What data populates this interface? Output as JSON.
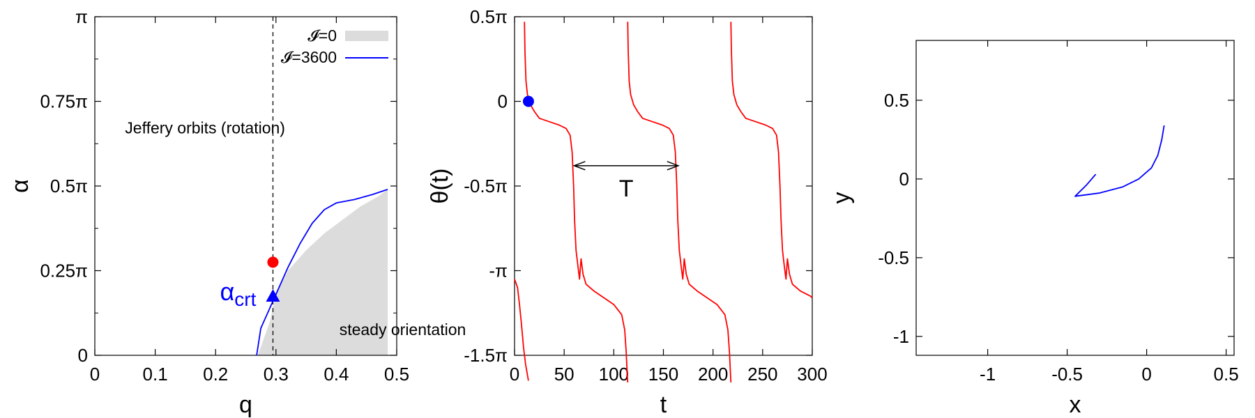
{
  "chart_data": [
    {
      "type": "line",
      "xlabel": "q",
      "ylabel": "α",
      "xlim": [
        0,
        0.5
      ],
      "ylim": [
        0,
        1
      ],
      "xticks": [
        0,
        0.1,
        0.2,
        0.3,
        0.4,
        0.5
      ],
      "xtick_labels": [
        "0",
        "0.1",
        "0.2",
        "0.3",
        "0.4",
        "0.5"
      ],
      "yticks": [
        0,
        0.25,
        0.5,
        0.75,
        1
      ],
      "ytick_labels": [
        "0",
        "0.25π",
        "0.5π",
        "0.75π",
        "π"
      ],
      "legend": {
        "placement": "top-right",
        "entries": [
          {
            "label": "𝓘=0",
            "style": "filled-area",
            "color": "#dcdcdc"
          },
          {
            "label": "𝓘=3600",
            "style": "line",
            "color": "#0000ff"
          }
        ]
      },
      "series": [
        {
          "name": "𝓘=0",
          "kind": "area",
          "color": "#dcdcdc",
          "x": [
            0.27,
            0.29,
            0.3,
            0.32,
            0.35,
            0.38,
            0.41,
            0.44,
            0.47,
            0.485
          ],
          "y": [
            0.0,
            0.1,
            0.18,
            0.25,
            0.31,
            0.36,
            0.4,
            0.44,
            0.47,
            0.49
          ]
        },
        {
          "name": "𝓘=3600",
          "kind": "line",
          "color": "#0000ff",
          "x": [
            0.268,
            0.275,
            0.29,
            0.3,
            0.32,
            0.34,
            0.36,
            0.38,
            0.4,
            0.43,
            0.46,
            0.485
          ],
          "y": [
            0.0,
            0.08,
            0.14,
            0.18,
            0.26,
            0.33,
            0.39,
            0.43,
            0.45,
            0.46,
            0.475,
            0.49
          ]
        }
      ],
      "markers": [
        {
          "shape": "circle",
          "color": "#ff0000",
          "x": 0.295,
          "y": 0.275
        },
        {
          "shape": "triangle",
          "color": "#0000ff",
          "x": 0.295,
          "y": 0.175
        }
      ],
      "vline_x": 0.295,
      "annotations": [
        {
          "text": "Jeffery orbits (rotation)",
          "x": 0.05,
          "y": 0.655
        },
        {
          "text": "steady orientation",
          "x": 0.405,
          "y": 0.06
        }
      ],
      "marker_label": {
        "text": "α",
        "sub": "crt"
      }
    },
    {
      "type": "line",
      "xlabel": "t",
      "ylabel": "θ(t)",
      "xlim": [
        0,
        300
      ],
      "ylim": [
        -1.5,
        0.5
      ],
      "xticks": [
        0,
        50,
        100,
        150,
        200,
        250,
        300
      ],
      "xtick_labels": [
        "0",
        "50",
        "100",
        "150",
        "200",
        "250",
        "300"
      ],
      "yticks": [
        0.5,
        0,
        -0.5,
        -1,
        -1.5
      ],
      "ytick_labels": [
        "0.5π",
        "0",
        "-0.5π",
        "-π",
        "-1.5π"
      ],
      "series": [
        {
          "color": "#ff0000",
          "x": [
            0,
            3,
            5,
            7,
            9,
            11,
            14
          ],
          "y": [
            -1.05,
            -1.1,
            -1.2,
            -1.32,
            -1.45,
            -1.55,
            -1.65
          ]
        },
        {
          "color": "#ff0000",
          "x": [
            10,
            10.5,
            11.5,
            13,
            16,
            20,
            25,
            35,
            45,
            52,
            56,
            58,
            59.5,
            60.5,
            62,
            64,
            65.5,
            67,
            69,
            72,
            80,
            90,
            100,
            108,
            111,
            112.5,
            113.5,
            114
          ],
          "y": [
            0.47,
            0.3,
            0.12,
            0.04,
            -0.02,
            -0.06,
            -0.1,
            -0.12,
            -0.14,
            -0.16,
            -0.2,
            -0.3,
            -0.5,
            -0.7,
            -0.88,
            -0.98,
            -1.05,
            -0.93,
            -1.02,
            -1.08,
            -1.12,
            -1.16,
            -1.2,
            -1.26,
            -1.35,
            -1.48,
            -1.6,
            -1.66
          ]
        },
        {
          "color": "#ff0000",
          "x": [
            114,
            114.5,
            115.5,
            117,
            120,
            124,
            129,
            139,
            149,
            156,
            160,
            162,
            163.5,
            164.5,
            166,
            168,
            169.5,
            171,
            173,
            176,
            184,
            194,
            204,
            212,
            215,
            216.5,
            217.5,
            218
          ],
          "y": [
            0.47,
            0.3,
            0.12,
            0.04,
            -0.02,
            -0.06,
            -0.1,
            -0.12,
            -0.14,
            -0.16,
            -0.2,
            -0.3,
            -0.5,
            -0.7,
            -0.88,
            -0.98,
            -1.05,
            -0.93,
            -1.02,
            -1.08,
            -1.12,
            -1.16,
            -1.2,
            -1.26,
            -1.35,
            -1.48,
            -1.6,
            -1.66
          ]
        },
        {
          "color": "#ff0000",
          "x": [
            218,
            218.5,
            219.5,
            221,
            224,
            228,
            233,
            243,
            253,
            260,
            264,
            266,
            267.5,
            268.5,
            270,
            272,
            273.5,
            275,
            277,
            280,
            288,
            298,
            300
          ],
          "y": [
            0.47,
            0.3,
            0.12,
            0.04,
            -0.02,
            -0.06,
            -0.1,
            -0.12,
            -0.14,
            -0.16,
            -0.2,
            -0.3,
            -0.5,
            -0.7,
            -0.88,
            -0.98,
            -1.05,
            -0.93,
            -1.02,
            -1.08,
            -1.12,
            -1.15,
            -1.16
          ]
        }
      ],
      "markers": [
        {
          "shape": "circle",
          "color": "#0000ff",
          "x": 14,
          "y": 0.0
        }
      ],
      "period_arrow": {
        "label": "T",
        "x_start": 60,
        "x_end": 165,
        "y": -0.38
      }
    },
    {
      "type": "line",
      "xlabel": "x",
      "ylabel": "y",
      "xlim": [
        -1.45,
        0.55
      ],
      "ylim": [
        -1.12,
        0.88
      ],
      "xticks": [
        -1,
        -0.5,
        0,
        0.5
      ],
      "xtick_labels": [
        "-1",
        "-0.5",
        "0",
        "0.5"
      ],
      "yticks": [
        0.5,
        0,
        -0.5,
        -1
      ],
      "ytick_labels": [
        "0.5",
        "0",
        "-0.5",
        "-1"
      ],
      "series": [
        {
          "color": "#0000ff",
          "x": [
            -0.32,
            -0.38,
            -0.45,
            -0.3,
            -0.15,
            -0.05,
            0.03,
            0.07,
            0.095,
            0.11
          ],
          "y": [
            0.03,
            -0.04,
            -0.11,
            -0.09,
            -0.05,
            0.0,
            0.07,
            0.15,
            0.25,
            0.34
          ]
        }
      ]
    }
  ]
}
